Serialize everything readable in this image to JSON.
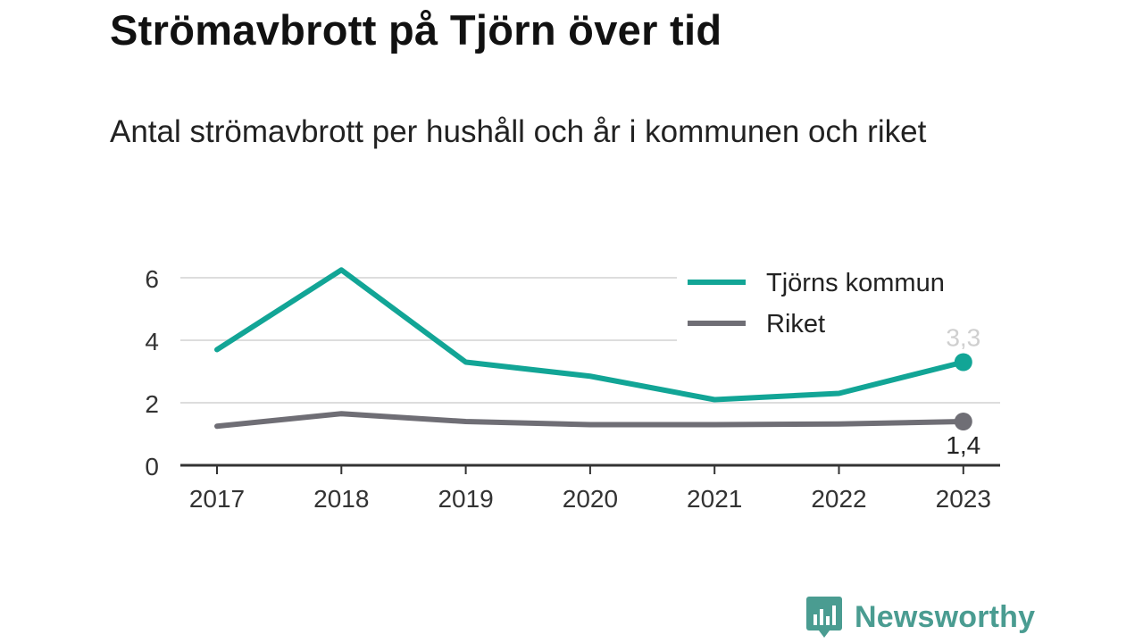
{
  "title": "Strömavbrott på Tjörn över tid",
  "subtitle": "Antal strömavbrott per hushåll och år i kommunen och riket",
  "brand": {
    "name": "Newsworthy",
    "icon": "newsworthy-logo-icon",
    "color": "#4a9c91"
  },
  "colors": {
    "tjorn": "#12a596",
    "riket": "#6f6e75",
    "grid": "#dddddd",
    "axis": "#333333"
  },
  "chart_data": {
    "type": "line",
    "x": [
      "2017",
      "2018",
      "2019",
      "2020",
      "2021",
      "2022",
      "2023"
    ],
    "yticks": [
      "0",
      "2",
      "4",
      "6"
    ],
    "ylim": [
      0,
      6.5
    ],
    "grid": true,
    "legend": "top-right",
    "series": [
      {
        "name": "Tjörns kommun",
        "values": [
          3.7,
          6.25,
          3.3,
          2.85,
          2.1,
          2.3,
          3.3
        ],
        "end_label": "3,3"
      },
      {
        "name": "Riket",
        "values": [
          1.25,
          1.65,
          1.4,
          1.3,
          1.3,
          1.32,
          1.4
        ],
        "end_label": "1,4"
      }
    ]
  }
}
